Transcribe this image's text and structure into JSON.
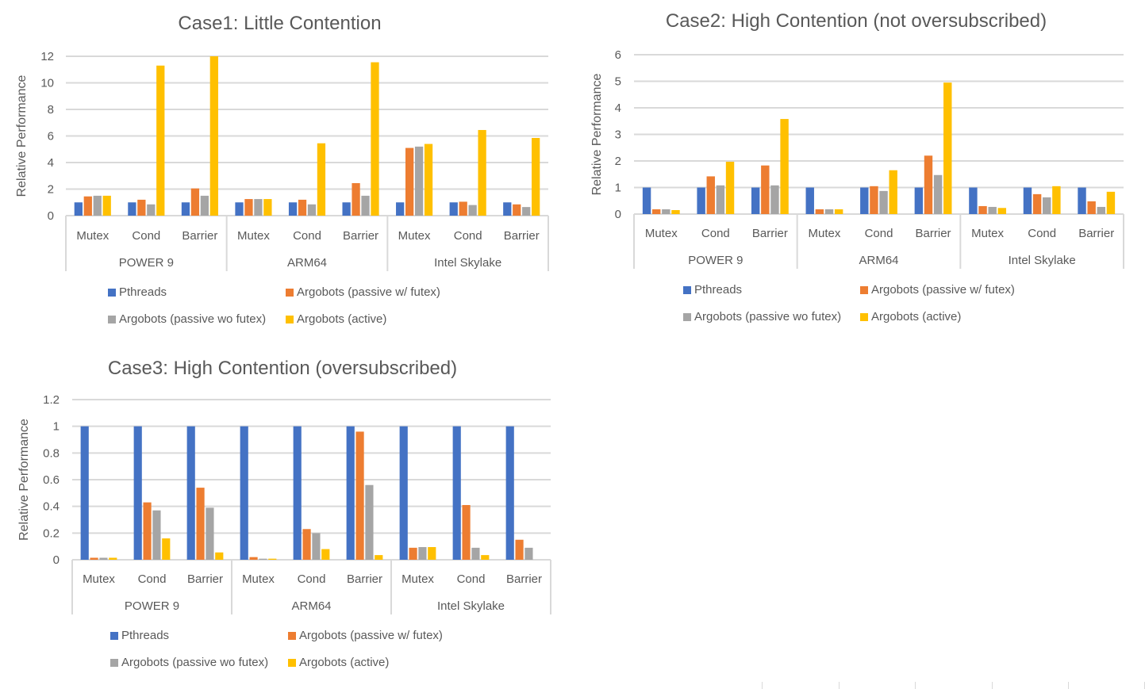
{
  "colors": {
    "Pthreads": "#4472c4",
    "Argobots (passive w/ futex)": "#ed7d31",
    "Argobots (passive wo futex)": "#a5a5a5",
    "Argobots (active)": "#ffc000",
    "gridline": "#d9d9d9",
    "text": "#595959"
  },
  "chart_data": [
    {
      "type": "bar",
      "title": "Case1: Little Contention",
      "ylabel": "Relative Performance",
      "xlabel": "",
      "ylim": [
        0,
        12
      ],
      "yticks": [
        0,
        2,
        4,
        6,
        8,
        10,
        12
      ],
      "grid": true,
      "legend_position": "bottom",
      "groups": [
        "POWER 9",
        "ARM64",
        "Intel Skylake"
      ],
      "categories": [
        "Mutex",
        "Cond",
        "Barrier"
      ],
      "series": [
        {
          "name": "Pthreads",
          "values": [
            1,
            1,
            1,
            1,
            1,
            1,
            1,
            1,
            1
          ]
        },
        {
          "name": "Argobots (passive w/ futex)",
          "values": [
            1.45,
            1.2,
            2.05,
            1.25,
            1.2,
            2.45,
            5.1,
            1.05,
            0.85
          ]
        },
        {
          "name": "Argobots (passive wo futex)",
          "values": [
            1.5,
            0.85,
            1.5,
            1.25,
            0.85,
            1.5,
            5.2,
            0.8,
            0.65
          ]
        },
        {
          "name": "Argobots (active)",
          "values": [
            1.5,
            11.3,
            12.0,
            1.25,
            5.45,
            11.55,
            5.4,
            6.45,
            5.85
          ]
        }
      ]
    },
    {
      "type": "bar",
      "title": "Case2: High Contention (not oversubscribed)",
      "ylabel": "Relative Performance",
      "xlabel": "",
      "ylim": [
        0,
        6
      ],
      "yticks": [
        0,
        1,
        2,
        3,
        4,
        5,
        6
      ],
      "grid": true,
      "legend_position": "bottom",
      "groups": [
        "POWER 9",
        "ARM64",
        "Intel Skylake"
      ],
      "categories": [
        "Mutex",
        "Cond",
        "Barrier"
      ],
      "series": [
        {
          "name": "Pthreads",
          "values": [
            1,
            1,
            1,
            1,
            1,
            1,
            1,
            1,
            1
          ]
        },
        {
          "name": "Argobots (passive w/ futex)",
          "values": [
            0.18,
            1.42,
            1.83,
            0.18,
            1.05,
            2.2,
            0.3,
            0.75,
            0.48
          ]
        },
        {
          "name": "Argobots (passive wo futex)",
          "values": [
            0.18,
            1.08,
            1.08,
            0.18,
            0.87,
            1.47,
            0.27,
            0.63,
            0.27
          ]
        },
        {
          "name": "Argobots (active)",
          "values": [
            0.15,
            1.97,
            3.58,
            0.18,
            1.65,
            4.95,
            0.23,
            1.05,
            0.84
          ]
        }
      ]
    },
    {
      "type": "bar",
      "title": "Case3: High Contention (oversubscribed)",
      "ylabel": "Relative Performance",
      "xlabel": "",
      "ylim": [
        0,
        1.2
      ],
      "yticks": [
        "0",
        "0.2",
        "0.4",
        "0.6",
        "0.8",
        "1",
        "1.2"
      ],
      "grid": true,
      "legend_position": "bottom",
      "groups": [
        "POWER 9",
        "ARM64",
        "Intel Skylake"
      ],
      "categories": [
        "Mutex",
        "Cond",
        "Barrier"
      ],
      "series": [
        {
          "name": "Pthreads",
          "values": [
            1,
            1,
            1,
            1,
            1,
            1,
            1,
            1,
            1
          ]
        },
        {
          "name": "Argobots (passive w/ futex)",
          "values": [
            0.015,
            0.43,
            0.54,
            0.02,
            0.23,
            0.96,
            0.09,
            0.41,
            0.15
          ]
        },
        {
          "name": "Argobots (passive wo futex)",
          "values": [
            0.015,
            0.37,
            0.39,
            0.008,
            0.2,
            0.56,
            0.095,
            0.09,
            0.09
          ]
        },
        {
          "name": "Argobots (active)",
          "values": [
            0.015,
            0.16,
            0.055,
            0.008,
            0.08,
            0.035,
            0.095,
            0.035,
            0.0
          ]
        }
      ]
    }
  ]
}
